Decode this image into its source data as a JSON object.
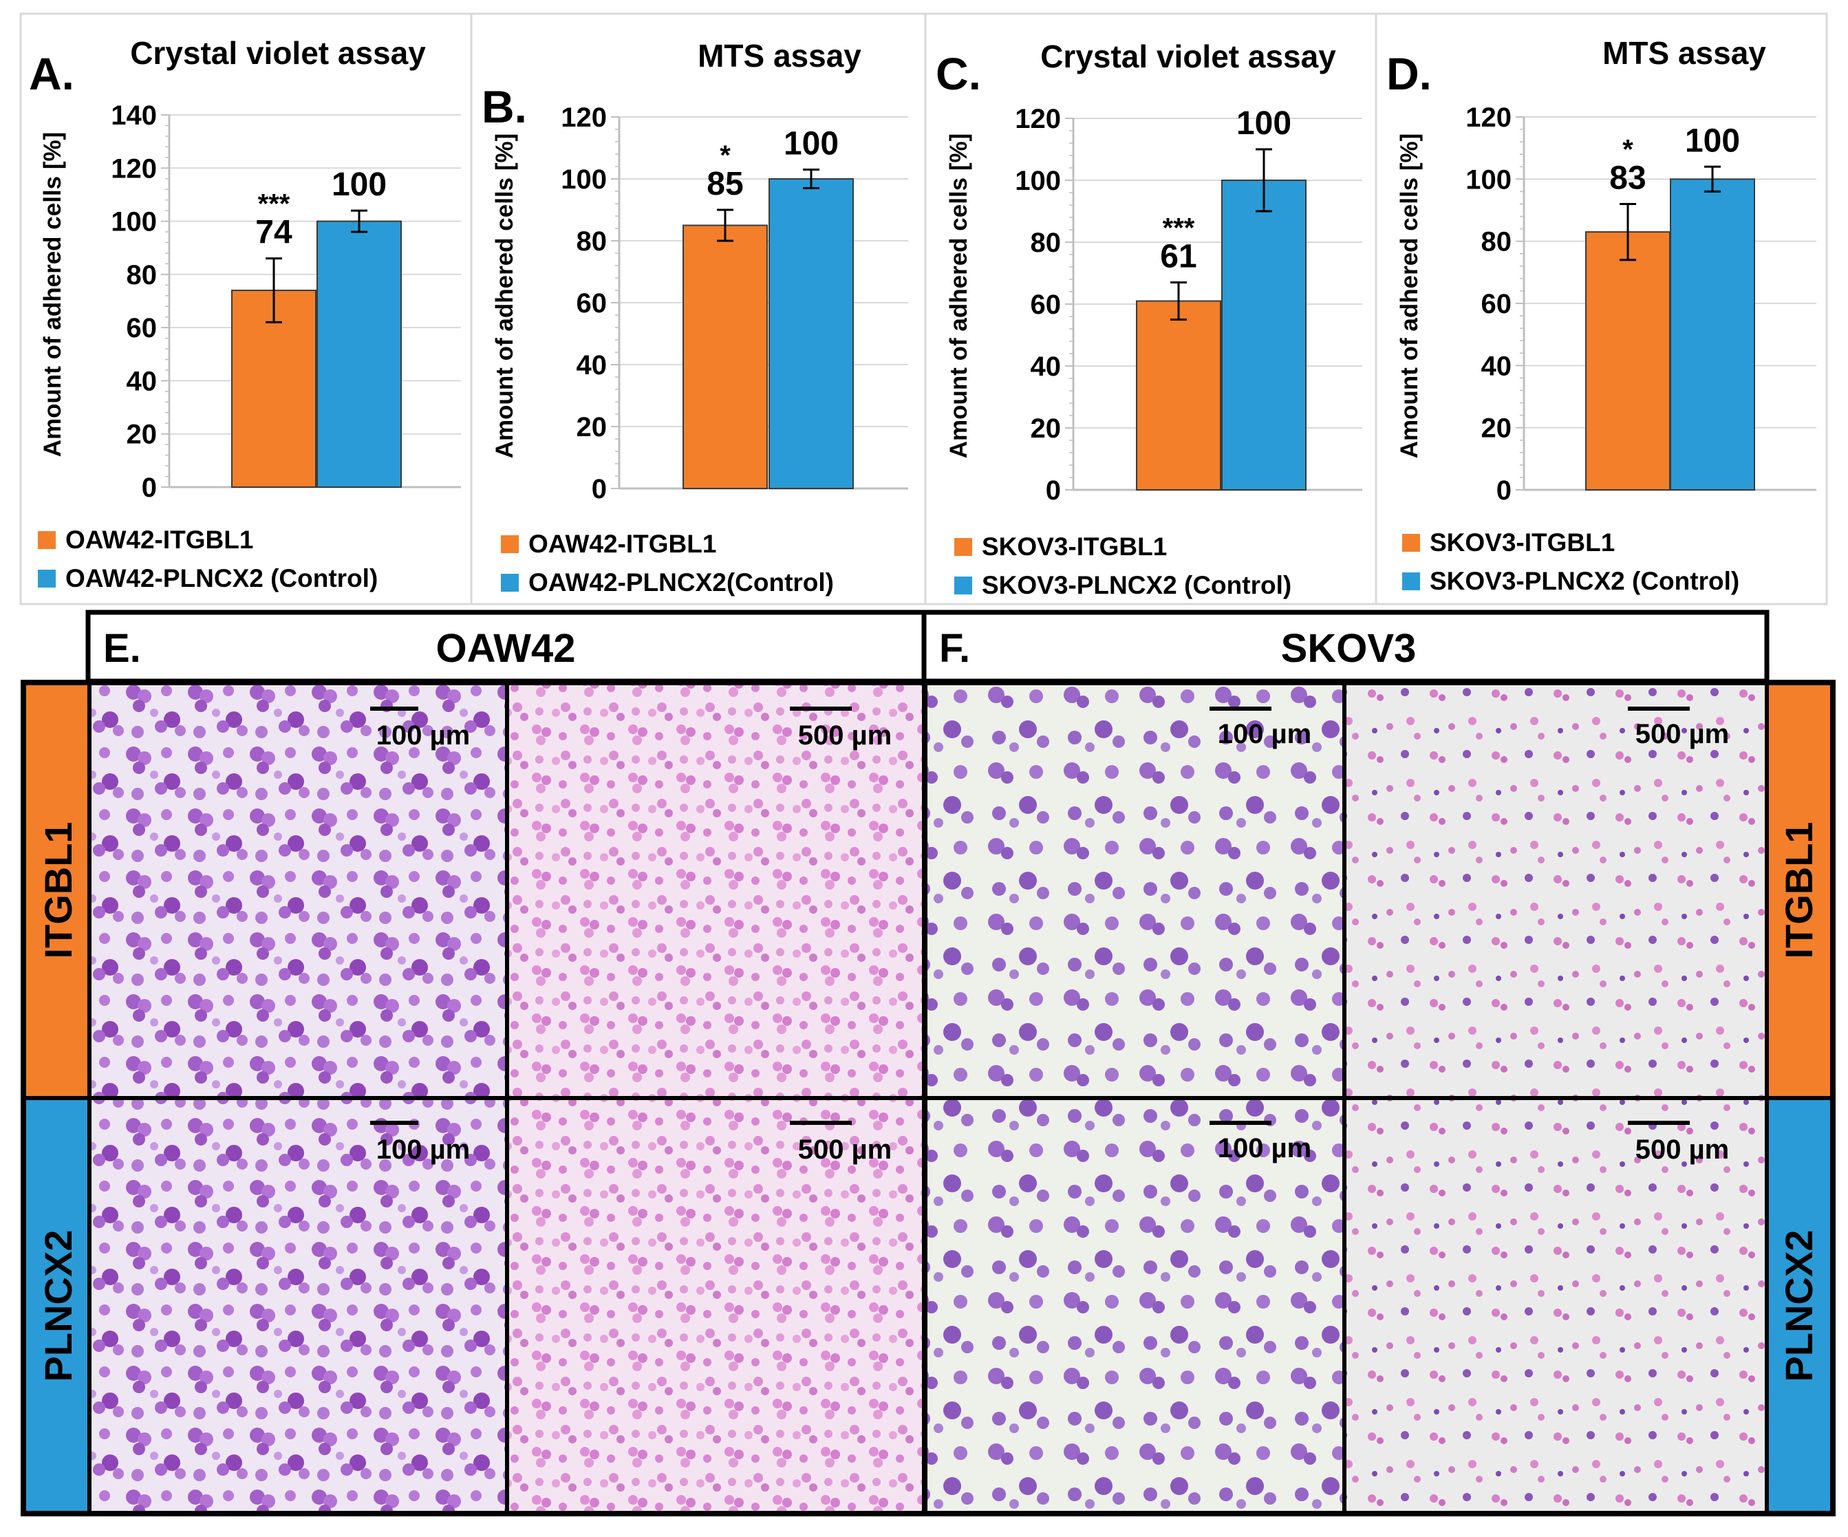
{
  "colors": {
    "orange": "#f37f2a",
    "blue": "#2a9bd6",
    "grid": "#d9d9d9",
    "axis": "#bfbfbf",
    "text": "#000000",
    "panel_border": "#d9d9d9"
  },
  "chart_data": [
    {
      "type": "bar",
      "panel": "A.",
      "title": "Crystal violet assay",
      "ylabel": "Amount of adhered cells [%]",
      "ylim": [
        0,
        140
      ],
      "yticks": [
        0,
        20,
        40,
        60,
        80,
        100,
        120,
        140
      ],
      "grid": true,
      "legend_position": "bottom",
      "series": [
        {
          "name": "OAW42-ITGBL1",
          "value": 74,
          "error": 12,
          "significance": "***",
          "color": "#f37f2a"
        },
        {
          "name": "OAW42-PLNCX2 (Control)",
          "value": 100,
          "error": 4,
          "significance": "",
          "color": "#2a9bd6"
        }
      ]
    },
    {
      "type": "bar",
      "panel": "B.",
      "title": "MTS assay",
      "ylabel": "Amount of adhered cells [%]",
      "ylim": [
        0,
        120
      ],
      "yticks": [
        0,
        20,
        40,
        60,
        80,
        100,
        120
      ],
      "grid": true,
      "legend_position": "bottom",
      "series": [
        {
          "name": "OAW42-ITGBL1",
          "value": 85,
          "error": 5,
          "significance": "*",
          "color": "#f37f2a"
        },
        {
          "name": "OAW42-PLNCX2(Control)",
          "value": 100,
          "error": 3,
          "significance": "",
          "color": "#2a9bd6"
        }
      ]
    },
    {
      "type": "bar",
      "panel": "C.",
      "title": "Crystal violet assay",
      "ylabel": "Amount of adhered cells [%]",
      "ylim": [
        0,
        120
      ],
      "yticks": [
        0,
        20,
        40,
        60,
        80,
        100,
        120
      ],
      "grid": true,
      "legend_position": "bottom",
      "series": [
        {
          "name": "SKOV3-ITGBL1",
          "value": 61,
          "error": 6,
          "significance": "***",
          "color": "#f37f2a"
        },
        {
          "name": "SKOV3-PLNCX2 (Control)",
          "value": 100,
          "error": 10,
          "significance": "",
          "color": "#2a9bd6"
        }
      ]
    },
    {
      "type": "bar",
      "panel": "D.",
      "title": "MTS assay",
      "ylabel": "Amount of adhered cells [%]",
      "ylim": [
        0,
        120
      ],
      "yticks": [
        0,
        20,
        40,
        60,
        80,
        100,
        120
      ],
      "grid": true,
      "legend_position": "bottom",
      "series": [
        {
          "name": "SKOV3-ITGBL1",
          "value": 83,
          "error": 9,
          "significance": "*",
          "color": "#f37f2a"
        },
        {
          "name": "SKOV3-PLNCX2 (Control)",
          "value": 100,
          "error": 4,
          "significance": "",
          "color": "#2a9bd6"
        }
      ]
    }
  ],
  "micrographs": {
    "groups": [
      {
        "panel": "E.",
        "cell_line": "OAW42"
      },
      {
        "panel": "F.",
        "cell_line": "SKOV3"
      }
    ],
    "rows": [
      {
        "label": "ITGBL1",
        "color": "#f37f2a"
      },
      {
        "label": "PLNCX2",
        "color": "#2a9bd6"
      }
    ],
    "scale_bars": [
      "100 µm",
      "500 µm",
      "100 µm",
      "500 µm"
    ]
  }
}
